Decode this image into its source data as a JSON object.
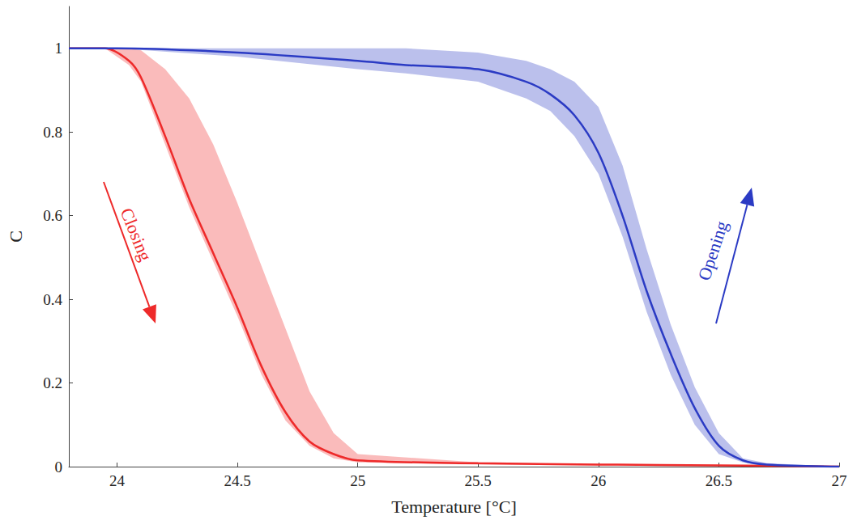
{
  "chart_data": {
    "type": "line",
    "x_label": "Temperature [°C]",
    "y_label": "C",
    "xlim": [
      23.8,
      27
    ],
    "ylim": [
      0,
      1.1
    ],
    "xticks": [
      24,
      24.5,
      25,
      25.5,
      26,
      26.5,
      27
    ],
    "yticks": [
      0,
      0.2,
      0.4,
      0.6,
      0.8,
      1
    ],
    "grid": false,
    "series": [
      {
        "name": "Closing",
        "color": "#ee2a2a",
        "x": [
          23.8,
          23.95,
          24.05,
          24.1,
          24.2,
          24.3,
          24.4,
          24.5,
          24.6,
          24.7,
          24.8,
          24.9,
          25,
          25.5,
          26,
          26.5,
          27
        ],
        "values": [
          1,
          1,
          0.97,
          0.93,
          0.79,
          0.64,
          0.51,
          0.38,
          0.24,
          0.13,
          0.06,
          0.03,
          0.015,
          0.008,
          0.005,
          0.003,
          0
        ],
        "band_lower": [
          1,
          1,
          0.96,
          0.92,
          0.77,
          0.62,
          0.49,
          0.36,
          0.22,
          0.11,
          0.05,
          0.02,
          0.01,
          0.005,
          0.003,
          0.002,
          0
        ],
        "band_upper": [
          1,
          1,
          1,
          0.995,
          0.95,
          0.88,
          0.77,
          0.63,
          0.48,
          0.33,
          0.18,
          0.08,
          0.03,
          0.01,
          0.006,
          0.004,
          0
        ]
      },
      {
        "name": "Opening",
        "color": "#2b3bc4",
        "x": [
          23.8,
          24,
          24.5,
          25,
          25.2,
          25.5,
          25.7,
          25.8,
          25.9,
          26,
          26.1,
          26.2,
          26.3,
          26.4,
          26.5,
          26.6,
          26.7,
          27
        ],
        "values": [
          1,
          1,
          0.99,
          0.97,
          0.96,
          0.95,
          0.92,
          0.89,
          0.84,
          0.75,
          0.6,
          0.42,
          0.27,
          0.14,
          0.05,
          0.015,
          0.005,
          0
        ],
        "band_lower": [
          1,
          1,
          0.98,
          0.95,
          0.94,
          0.92,
          0.88,
          0.85,
          0.79,
          0.7,
          0.55,
          0.37,
          0.22,
          0.1,
          0.03,
          0.01,
          0,
          0
        ],
        "band_upper": [
          1,
          1,
          1,
          1,
          1,
          0.99,
          0.97,
          0.95,
          0.92,
          0.86,
          0.72,
          0.52,
          0.34,
          0.19,
          0.08,
          0.02,
          0.008,
          0
        ]
      }
    ]
  }
}
